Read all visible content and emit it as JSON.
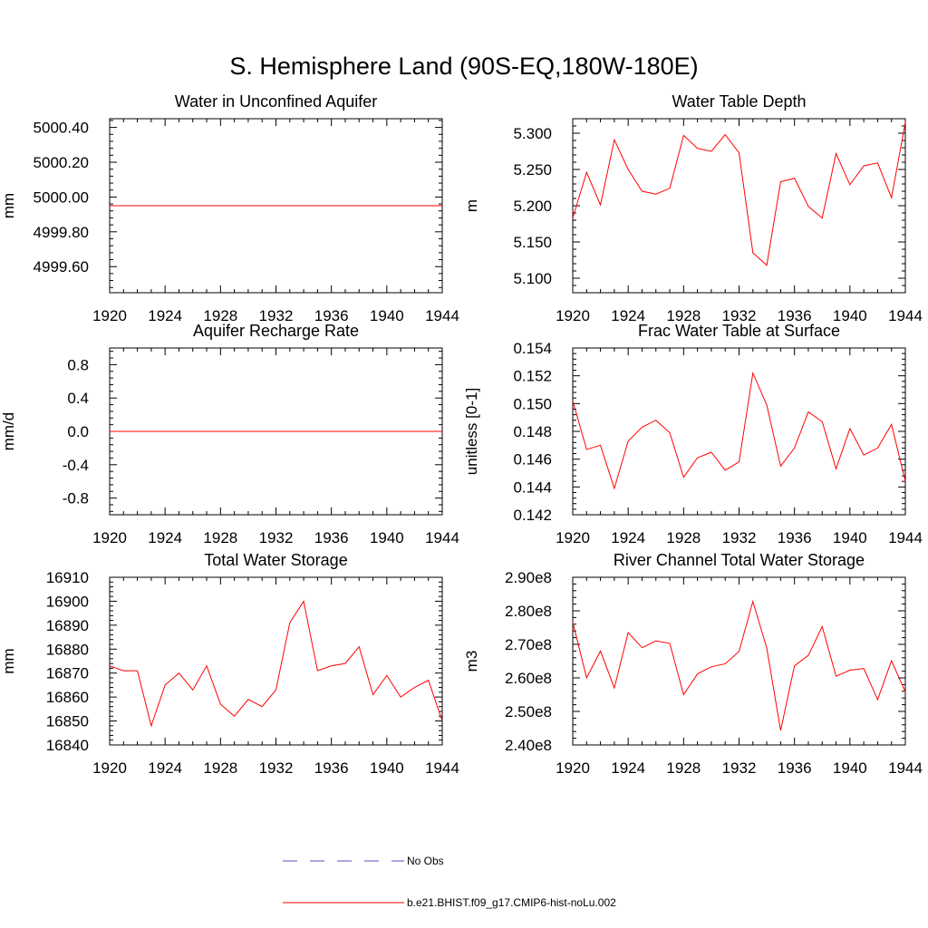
{
  "figure": {
    "title": "S. Hemisphere Land (90S-EQ,180W-180E)"
  },
  "colors": {
    "model_line": "#ff0000",
    "obs_line": "#5050c8",
    "axis": "#000000"
  },
  "legend": {
    "entries": [
      {
        "label": "No Obs",
        "style": "dashed",
        "color": "#5050c8"
      },
      {
        "label": "b.e21.BHIST.f09_g17.CMIP6-hist-noLu.002",
        "style": "solid",
        "color": "#ff0000"
      }
    ]
  },
  "chart_data": [
    {
      "type": "line",
      "title": "Water in Unconfined Aquifer",
      "ylabel": "mm",
      "xlim": [
        1920,
        1944
      ],
      "ylim": [
        4999.45,
        5000.45
      ],
      "xticks": [
        1920,
        1924,
        1928,
        1932,
        1936,
        1940,
        1944
      ],
      "xtick_labels": [
        "1920",
        "1924",
        "1928",
        "1932",
        "1936",
        "1940",
        "1944"
      ],
      "yticks": [
        4999.6,
        4999.8,
        5000.0,
        5000.2,
        5000.4
      ],
      "ytick_labels": [
        "4999.60",
        "4999.80",
        "5000.00",
        "5000.20",
        "5000.40"
      ],
      "series": [
        {
          "color": "#ff0000",
          "x": [
            1920,
            1944
          ],
          "y": [
            4999.95,
            4999.95
          ]
        }
      ]
    },
    {
      "type": "line",
      "title": "Water Table Depth",
      "ylabel": "m",
      "xlim": [
        1920,
        1944
      ],
      "ylim": [
        5.08,
        5.32
      ],
      "xticks": [
        1920,
        1924,
        1928,
        1932,
        1936,
        1940,
        1944
      ],
      "xtick_labels": [
        "1920",
        "1924",
        "1928",
        "1932",
        "1936",
        "1940",
        "1944"
      ],
      "yticks": [
        5.1,
        5.15,
        5.2,
        5.25,
        5.3
      ],
      "ytick_labels": [
        "5.100",
        "5.150",
        "5.200",
        "5.250",
        "5.300"
      ],
      "series": [
        {
          "color": "#ff0000",
          "x": [
            1920,
            1921,
            1922,
            1923,
            1924,
            1925,
            1926,
            1927,
            1928,
            1929,
            1930,
            1931,
            1932,
            1933,
            1934,
            1935,
            1936,
            1937,
            1938,
            1939,
            1940,
            1941,
            1942,
            1943,
            1944
          ],
          "y": [
            5.183,
            5.246,
            5.201,
            5.291,
            5.25,
            5.22,
            5.216,
            5.224,
            5.297,
            5.279,
            5.275,
            5.298,
            5.273,
            5.135,
            5.118,
            5.233,
            5.238,
            5.199,
            5.183,
            5.272,
            5.229,
            5.255,
            5.259,
            5.211,
            5.315
          ]
        }
      ]
    },
    {
      "type": "line",
      "title": "Aquifer Recharge Rate",
      "ylabel": "mm/d",
      "xlim": [
        1920,
        1944
      ],
      "ylim": [
        -1.0,
        1.0
      ],
      "xticks": [
        1920,
        1924,
        1928,
        1932,
        1936,
        1940,
        1944
      ],
      "xtick_labels": [
        "1920",
        "1924",
        "1928",
        "1932",
        "1936",
        "1940",
        "1944"
      ],
      "yticks": [
        -0.8,
        -0.4,
        0.0,
        0.4,
        0.8
      ],
      "ytick_labels": [
        "-0.8",
        "-0.4",
        "0.0",
        "0.4",
        "0.8"
      ],
      "series": [
        {
          "color": "#ff0000",
          "x": [
            1920,
            1944
          ],
          "y": [
            0.0,
            0.0
          ]
        }
      ]
    },
    {
      "type": "line",
      "title": "Frac Water Table at Surface",
      "ylabel": "unitless [0-1]",
      "xlim": [
        1920,
        1944
      ],
      "ylim": [
        0.142,
        0.154
      ],
      "xticks": [
        1920,
        1924,
        1928,
        1932,
        1936,
        1940,
        1944
      ],
      "xtick_labels": [
        "1920",
        "1924",
        "1928",
        "1932",
        "1936",
        "1940",
        "1944"
      ],
      "yticks": [
        0.142,
        0.144,
        0.146,
        0.148,
        0.15,
        0.152,
        0.154
      ],
      "ytick_labels": [
        "0.142",
        "0.144",
        "0.146",
        "0.148",
        "0.150",
        "0.152",
        "0.154"
      ],
      "series": [
        {
          "color": "#ff0000",
          "x": [
            1920,
            1921,
            1922,
            1923,
            1924,
            1925,
            1926,
            1927,
            1928,
            1929,
            1930,
            1931,
            1932,
            1933,
            1934,
            1935,
            1936,
            1937,
            1938,
            1939,
            1940,
            1941,
            1942,
            1943,
            1944
          ],
          "y": [
            0.1502,
            0.1467,
            0.147,
            0.1439,
            0.1473,
            0.1483,
            0.1488,
            0.1479,
            0.1447,
            0.1461,
            0.1465,
            0.1452,
            0.1458,
            0.1522,
            0.1499,
            0.1455,
            0.1468,
            0.1494,
            0.1487,
            0.1453,
            0.1482,
            0.1463,
            0.1468,
            0.1485,
            0.1444
          ]
        }
      ]
    },
    {
      "type": "line",
      "title": "Total Water Storage",
      "ylabel": "mm",
      "xlim": [
        1920,
        1944
      ],
      "ylim": [
        16840,
        16910
      ],
      "xticks": [
        1920,
        1924,
        1928,
        1932,
        1936,
        1940,
        1944
      ],
      "xtick_labels": [
        "1920",
        "1924",
        "1928",
        "1932",
        "1936",
        "1940",
        "1944"
      ],
      "yticks": [
        16840,
        16850,
        16860,
        16870,
        16880,
        16890,
        16900,
        16910
      ],
      "ytick_labels": [
        "16840",
        "16850",
        "16860",
        "16870",
        "16880",
        "16890",
        "16900",
        "16910"
      ],
      "series": [
        {
          "color": "#ff0000",
          "x": [
            1920,
            1921,
            1922,
            1923,
            1924,
            1925,
            1926,
            1927,
            1928,
            1929,
            1930,
            1931,
            1932,
            1933,
            1934,
            1935,
            1936,
            1937,
            1938,
            1939,
            1940,
            1941,
            1942,
            1943,
            1944
          ],
          "y": [
            16873,
            16871,
            16871,
            16848,
            16865,
            16870,
            16863,
            16873,
            16857,
            16852,
            16859,
            16856,
            16863,
            16891,
            16900,
            16871,
            16873,
            16874,
            16881,
            16861,
            16869,
            16860,
            16864,
            16867,
            16850
          ]
        }
      ]
    },
    {
      "type": "line",
      "title": "River Channel Total Water Storage",
      "ylabel": "m3",
      "xlim": [
        1920,
        1944
      ],
      "ylim": [
        240000000.0,
        290000000.0
      ],
      "xticks": [
        1920,
        1924,
        1928,
        1932,
        1936,
        1940,
        1944
      ],
      "xtick_labels": [
        "1920",
        "1924",
        "1928",
        "1932",
        "1936",
        "1940",
        "1944"
      ],
      "yticks": [
        240000000.0,
        250000000.0,
        260000000.0,
        270000000.0,
        280000000.0,
        290000000.0
      ],
      "ytick_labels": [
        "2.40e8",
        "2.50e8",
        "2.60e8",
        "2.70e8",
        "2.80e8",
        "2.90e8"
      ],
      "series": [
        {
          "color": "#ff0000",
          "x": [
            1920,
            1921,
            1922,
            1923,
            1924,
            1925,
            1926,
            1927,
            1928,
            1929,
            1930,
            1931,
            1932,
            1933,
            1934,
            1935,
            1936,
            1937,
            1938,
            1939,
            1940,
            1941,
            1942,
            1943,
            1944
          ],
          "y": [
            276600000.0,
            260000000.0,
            268000000.0,
            257000000.0,
            273500000.0,
            269000000.0,
            271000000.0,
            270300000.0,
            255000000.0,
            261200000.0,
            263300000.0,
            264200000.0,
            267900000.0,
            282800000.0,
            268900000.0,
            244300000.0,
            263600000.0,
            266700000.0,
            275300000.0,
            260500000.0,
            262300000.0,
            262800000.0,
            253500000.0,
            265100000.0,
            255800000.0
          ]
        }
      ]
    }
  ]
}
